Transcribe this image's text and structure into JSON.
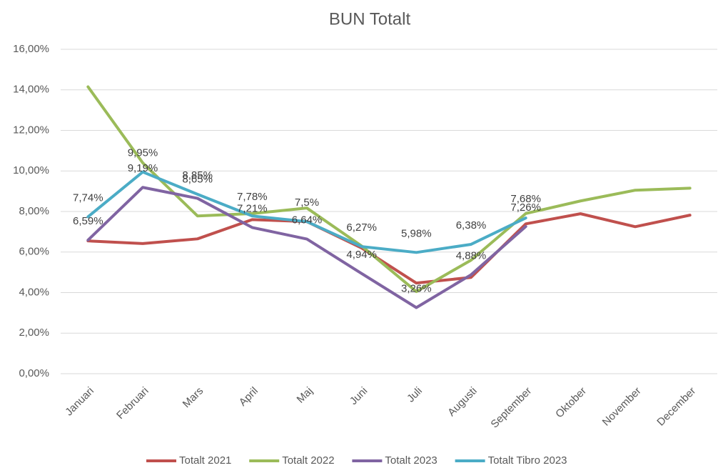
{
  "chart_data": {
    "type": "line",
    "title": "BUN Totalt",
    "categories": [
      "Januari",
      "Februari",
      "Mars",
      "April",
      "Maj",
      "Juni",
      "Juli",
      "Augusti",
      "September",
      "Oktober",
      "November",
      "December"
    ],
    "series": [
      {
        "name": "Totalt 2021",
        "color": "#c0504d",
        "values": [
          6.55,
          6.42,
          6.65,
          7.6,
          7.5,
          6.2,
          4.47,
          4.75,
          7.39,
          7.89,
          7.25,
          7.82
        ]
      },
      {
        "name": "Totalt 2022",
        "color": "#9bbb59",
        "values": [
          14.15,
          10.4,
          7.78,
          7.9,
          8.17,
          6.3,
          4.05,
          5.6,
          7.9,
          8.52,
          9.05,
          9.15
        ]
      },
      {
        "name": "Totalt 2023",
        "color": "#8064a2",
        "values": [
          6.59,
          9.19,
          8.65,
          7.21,
          6.64,
          4.94,
          3.26,
          4.88,
          7.26,
          null,
          null,
          null
        ],
        "value_labels": [
          "6,59%",
          "9,19%",
          "8,65%",
          "7,21%",
          "6,64%",
          "4,94%",
          "3,26%",
          "4,88%",
          "7,26%",
          null,
          null,
          null
        ]
      },
      {
        "name": "Totalt Tibro 2023",
        "color": "#4bacc6",
        "values": [
          7.74,
          9.95,
          8.85,
          7.78,
          7.5,
          6.27,
          5.98,
          6.38,
          7.68,
          null,
          null,
          null
        ],
        "value_labels": [
          "7,74%",
          "9,95%",
          "8,85%",
          "7,78%",
          "7,5%",
          "6,27%",
          "5,98%",
          "6,38%",
          "7,68%",
          null,
          null,
          null
        ]
      }
    ],
    "ylim": [
      0,
      16
    ],
    "yticks": [
      {
        "value": 0,
        "label": "0,00%"
      },
      {
        "value": 2,
        "label": "2,00%"
      },
      {
        "value": 4,
        "label": "4,00%"
      },
      {
        "value": 6,
        "label": "6,00%"
      },
      {
        "value": 8,
        "label": "8,00%"
      },
      {
        "value": 10,
        "label": "10,00%"
      },
      {
        "value": 12,
        "label": "12,00%"
      },
      {
        "value": 14,
        "label": "14,00%"
      },
      {
        "value": 16,
        "label": "16,00%"
      }
    ],
    "grid": true,
    "legend": "bottom"
  }
}
